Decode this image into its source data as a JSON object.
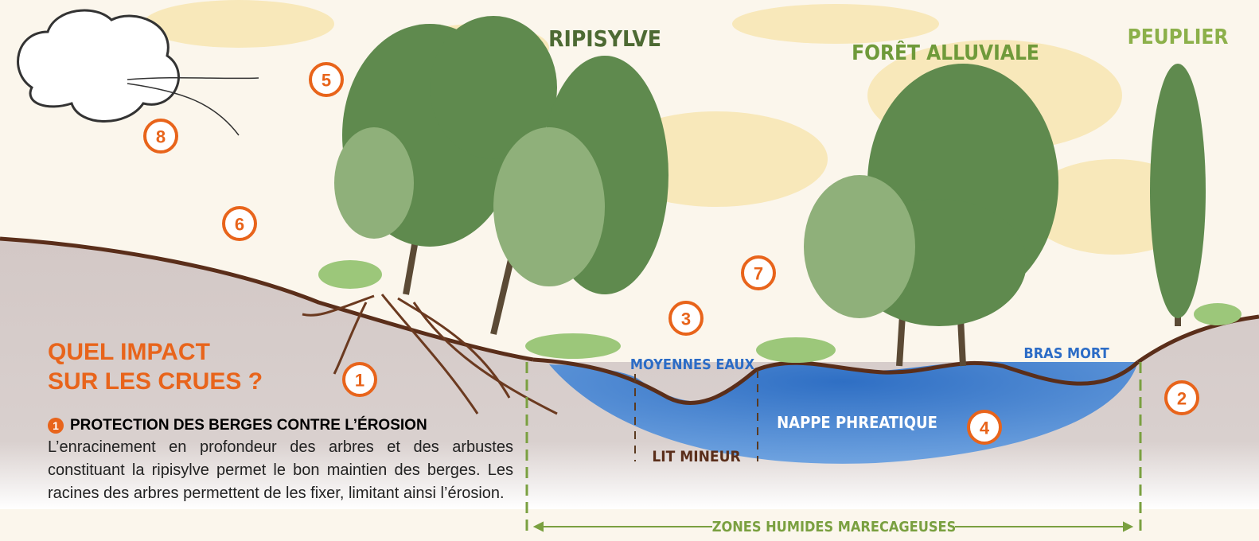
{
  "labels": {
    "ripisylve": "RIPISYLVE",
    "foret": "FORÊT ALLUVIALE",
    "peuplier": "PEUPLIER",
    "moyennes_eaux": "MOYENNES EAUX",
    "bras_mort": "BRAS MORT",
    "nappe": "NAPPE PHREATIQUE",
    "lit_mineur": "LIT MINEUR",
    "zones_humides": "ZONES HUMIDES MARECAGEUSES"
  },
  "markers": [
    "5",
    "8",
    "6",
    "7",
    "3",
    "1",
    "4",
    "2"
  ],
  "panel": {
    "heading": [
      "QUEL IMPACT",
      "SUR LES CRUES ?"
    ],
    "section_number": "1",
    "section_title": "PROTECTION DES BERGES CONTRE L’ÉROSION",
    "body": "L’enracinement en profondeur des arbres et des arbustes constituant la ripisylve permet le bon maintien des berges. Les racines des arbres permettent de les fixer, limitant ainsi l’érosion."
  }
}
